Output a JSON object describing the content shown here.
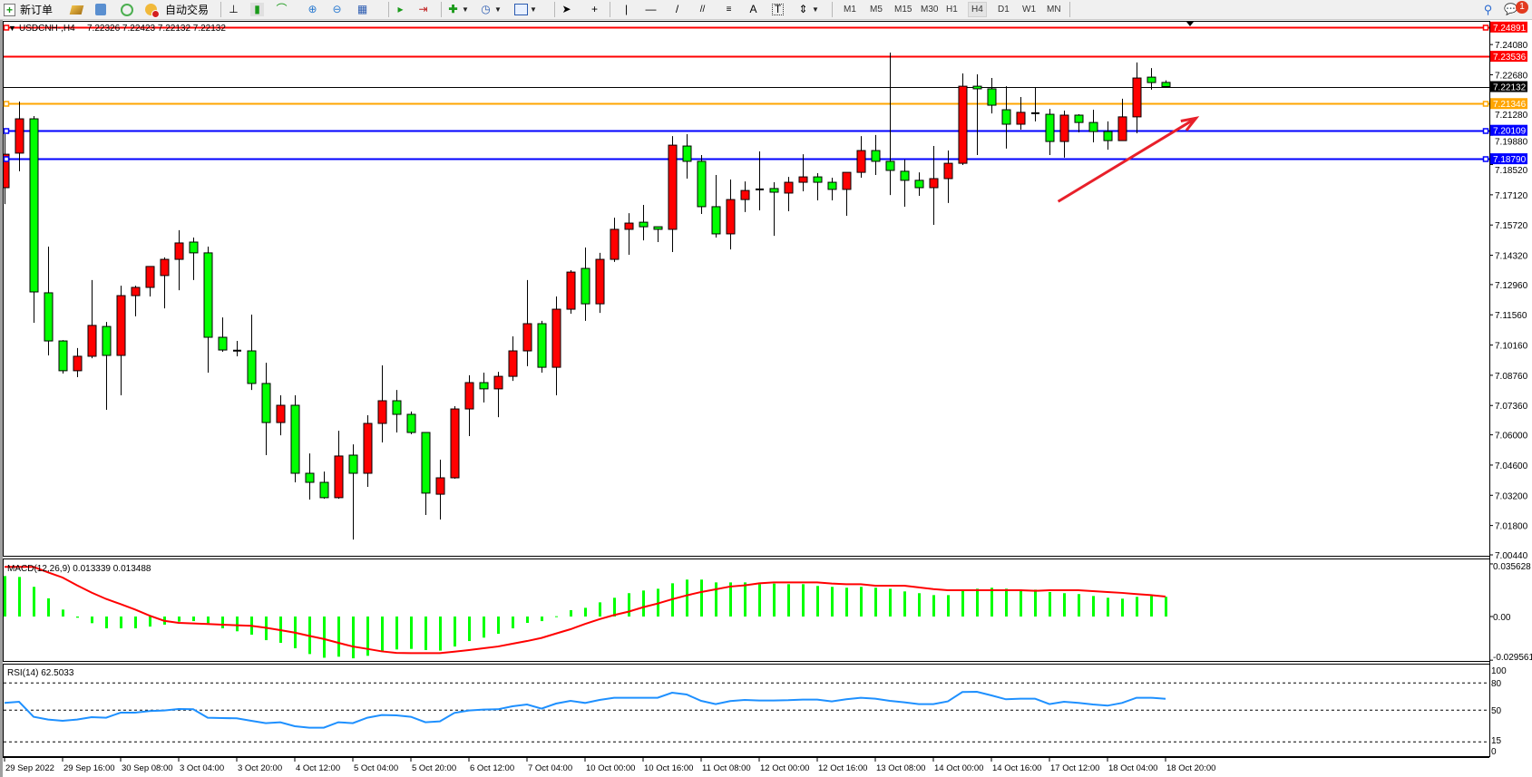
{
  "toolbar": {
    "new_order_label": "新订单",
    "auto_trading_label": "自动交易",
    "icons": [
      "new-order-icon",
      "gold-bars-icon",
      "navigator-icon",
      "signals-icon",
      "auto-trading-icon",
      "bar-chart-icon",
      "candlestick-icon",
      "line-chart-icon",
      "zoom-in-icon",
      "zoom-out-icon",
      "tile-windows-icon",
      "autoscroll-icon",
      "chart-shift-icon",
      "add-indicator-icon",
      "periods-clock-icon",
      "templates-icon",
      "cursor-icon",
      "crosshair-icon",
      "vertical-line-icon",
      "horizontal-line-icon",
      "trendline-icon",
      "equidistant-channel-icon",
      "fibonacci-icon",
      "text-icon",
      "text-label-icon",
      "arrows-icon",
      "search-icon",
      "chat-icon"
    ],
    "timeframes": [
      "M1",
      "M5",
      "M15",
      "M30",
      "H1",
      "H4",
      "D1",
      "W1",
      "MN"
    ],
    "active_timeframe": "H4",
    "notification_count": "1"
  },
  "chart_header": {
    "symbol_period": "USDCNH-,H4",
    "ohlc": "7.22326 7.22423 7.22132 7.22132"
  },
  "colors": {
    "bull_candle": "#ff0000",
    "bear_candle": "#00ff00",
    "macd_histogram": "#00ff00",
    "macd_signal": "#ff0000",
    "rsi_line": "#1e90ff",
    "annotation_arrow": "#e8202a"
  },
  "chart_data": {
    "type": "candlestick",
    "symbol": "USDCNH-",
    "timeframe": "H4",
    "ylim": [
      7.0044,
      7.251
    ],
    "price_ticks": [
      "7.24080",
      "7.22680",
      "7.21280",
      "7.19880",
      "7.18520",
      "7.17120",
      "7.15720",
      "7.14320",
      "7.12960",
      "7.11560",
      "7.10160",
      "7.08760",
      "7.07360",
      "7.06000",
      "7.04600",
      "7.03200",
      "7.01800",
      "7.00440"
    ],
    "x_tick_labels": [
      "29 Sep 2022",
      "29 Sep 16:00",
      "30 Sep 08:00",
      "3 Oct 04:00",
      "3 Oct 20:00",
      "4 Oct 12:00",
      "5 Oct 04:00",
      "5 Oct 20:00",
      "6 Oct 12:00",
      "7 Oct 04:00",
      "10 Oct 00:00",
      "10 Oct 16:00",
      "11 Oct 08:00",
      "12 Oct 00:00",
      "12 Oct 16:00",
      "13 Oct 08:00",
      "14 Oct 00:00",
      "14 Oct 16:00",
      "17 Oct 12:00",
      "18 Oct 04:00",
      "18 Oct 20:00"
    ],
    "x_tick_every_bars": 4,
    "ohlc_fields": [
      "open",
      "high",
      "low",
      "close"
    ],
    "candles": [
      [
        7.1745,
        7.1993,
        7.1669,
        7.19
      ],
      [
        7.1905,
        7.2144,
        7.1821,
        7.2064
      ],
      [
        7.2064,
        7.2077,
        7.1119,
        7.1262
      ],
      [
        7.1258,
        7.1472,
        7.0968,
        7.1035
      ],
      [
        7.1035,
        7.1039,
        7.0884,
        7.0897
      ],
      [
        7.0897,
        7.1002,
        7.0867,
        7.0964
      ],
      [
        7.0964,
        7.1317,
        7.0955,
        7.1107
      ],
      [
        7.1102,
        7.1123,
        7.0716,
        7.0968
      ],
      [
        7.0968,
        7.1291,
        7.0783,
        7.1245
      ],
      [
        7.1245,
        7.1291,
        7.1149,
        7.1283
      ],
      [
        7.1283,
        7.138,
        7.1241,
        7.138
      ],
      [
        7.1338,
        7.1422,
        7.1186,
        7.1413
      ],
      [
        7.1413,
        7.1548,
        7.127,
        7.1489
      ],
      [
        7.1493,
        7.1514,
        7.1317,
        7.1443
      ],
      [
        7.1443,
        7.1472,
        7.0888,
        7.1052
      ],
      [
        7.1052,
        7.1144,
        7.0985,
        7.0993
      ],
      [
        7.099,
        7.1035,
        7.0964,
        7.0989
      ],
      [
        7.0989,
        7.1157,
        7.0808,
        7.0838
      ],
      [
        7.0838,
        7.0934,
        7.0506,
        7.0657
      ],
      [
        7.0657,
        7.0783,
        7.0598,
        7.0737
      ],
      [
        7.0737,
        7.0783,
        7.038,
        7.0422
      ],
      [
        7.0422,
        7.0514,
        7.03,
        7.038
      ],
      [
        7.038,
        7.043,
        7.0304,
        7.0309
      ],
      [
        7.0309,
        7.0619,
        7.0304,
        7.0502
      ],
      [
        7.0506,
        7.0556,
        7.0115,
        7.0422
      ],
      [
        7.0422,
        7.0691,
        7.0359,
        7.0653
      ],
      [
        7.0653,
        7.0922,
        7.0565,
        7.0758
      ],
      [
        7.0758,
        7.0808,
        7.0611,
        7.0695
      ],
      [
        7.0695,
        7.0708,
        7.0603,
        7.0611
      ],
      [
        7.0611,
        7.0611,
        7.0229,
        7.033
      ],
      [
        7.0325,
        7.0485,
        7.0208,
        7.0401
      ],
      [
        7.0401,
        7.0733,
        7.0397,
        7.072
      ],
      [
        7.072,
        7.0876,
        7.0594,
        7.0842
      ],
      [
        7.0842,
        7.0888,
        7.075,
        7.0813
      ],
      [
        7.0813,
        7.0892,
        7.0682,
        7.0871
      ],
      [
        7.0871,
        7.1056,
        7.085,
        7.0989
      ],
      [
        7.0989,
        7.1317,
        7.0918,
        7.1115
      ],
      [
        7.1115,
        7.1128,
        7.0888,
        7.0913
      ],
      [
        7.0913,
        7.1241,
        7.0783,
        7.1182
      ],
      [
        7.1182,
        7.1363,
        7.1161,
        7.1354
      ],
      [
        7.1371,
        7.1468,
        7.1128,
        7.1207
      ],
      [
        7.1207,
        7.1443,
        7.1165,
        7.1413
      ],
      [
        7.1413,
        7.1606,
        7.1401,
        7.1552
      ],
      [
        7.1552,
        7.1627,
        7.1434,
        7.1581
      ],
      [
        7.1585,
        7.1665,
        7.1501,
        7.1564
      ],
      [
        7.1564,
        7.1564,
        7.1493,
        7.1552
      ],
      [
        7.1552,
        7.1984,
        7.1447,
        7.1942
      ],
      [
        7.1938,
        7.1993,
        7.1787,
        7.1867
      ],
      [
        7.1867,
        7.1896,
        7.1623,
        7.1657
      ],
      [
        7.1657,
        7.1804,
        7.1514,
        7.1531
      ],
      [
        7.1531,
        7.1783,
        7.1459,
        7.169
      ],
      [
        7.169,
        7.1774,
        7.1632,
        7.1732
      ],
      [
        7.1737,
        7.1913,
        7.164,
        7.1736
      ],
      [
        7.1741,
        7.177,
        7.1522,
        7.1724
      ],
      [
        7.172,
        7.1795,
        7.1636,
        7.177
      ],
      [
        7.177,
        7.19,
        7.1728,
        7.1795
      ],
      [
        7.1795,
        7.1812,
        7.1686,
        7.177
      ],
      [
        7.177,
        7.1791,
        7.1686,
        7.1737
      ],
      [
        7.1737,
        7.1816,
        7.1615,
        7.1816
      ],
      [
        7.1816,
        7.1984,
        7.1791,
        7.1917
      ],
      [
        7.1917,
        7.1989,
        7.1804,
        7.1867
      ],
      [
        7.1867,
        7.2371,
        7.1711,
        7.1825
      ],
      [
        7.1821,
        7.1875,
        7.1657,
        7.1779
      ],
      [
        7.1779,
        7.1816,
        7.1707,
        7.1745
      ],
      [
        7.1745,
        7.1938,
        7.1573,
        7.1787
      ],
      [
        7.1787,
        7.1917,
        7.1674,
        7.1858
      ],
      [
        7.1858,
        7.2274,
        7.185,
        7.2215
      ],
      [
        7.2215,
        7.227,
        7.1896,
        7.2203
      ],
      [
        7.2203,
        7.2253,
        7.2089,
        7.2127
      ],
      [
        7.2106,
        7.2215,
        7.1926,
        7.2039
      ],
      [
        7.2039,
        7.2165,
        7.2014,
        7.2094
      ],
      [
        7.209,
        7.2207,
        7.2052,
        7.2089
      ],
      [
        7.2085,
        7.211,
        7.1896,
        7.1959
      ],
      [
        7.1959,
        7.2102,
        7.1884,
        7.2081
      ],
      [
        7.2081,
        7.2085,
        7.2001,
        7.2047
      ],
      [
        7.2047,
        7.2106,
        7.1955,
        7.2005
      ],
      [
        7.2005,
        7.2052,
        7.1921,
        7.1963
      ],
      [
        7.1963,
        7.2157,
        7.1963,
        7.2073
      ],
      [
        7.2073,
        7.2325,
        7.1997,
        7.2253
      ],
      [
        7.2257,
        7.2299,
        7.2199,
        7.2232
      ],
      [
        7.22326,
        7.22423,
        7.22132,
        7.22132
      ]
    ],
    "horizontal_lines": [
      {
        "price": 7.24891,
        "label": "7.24891",
        "color": "#ff0000",
        "anchors": true
      },
      {
        "price": 7.23536,
        "label": "7.23536",
        "color": "#ff0000",
        "anchors": false
      },
      {
        "price": 7.22132,
        "label": "7.22132",
        "color": "#000000",
        "anchors": false,
        "current_price": true
      },
      {
        "price": 7.21346,
        "label": "7.21346",
        "color": "#ffa500",
        "anchors": true
      },
      {
        "price": 7.20109,
        "label": "7.20109",
        "color": "#0000ff",
        "anchors": true
      },
      {
        "price": 7.1879,
        "label": "7.18790",
        "color": "#0000ff",
        "anchors": true
      }
    ],
    "annotation": {
      "type": "arrow",
      "direction": "up-right",
      "from_bar": 72.6,
      "from_price": 7.1681,
      "to_bar": 82.1,
      "to_price": 7.2067
    },
    "macd": {
      "label": "MACD(12,26,9) 0.013339 0.013488",
      "ylim": [
        -0.029561,
        0.035628
      ],
      "ticks": [
        "0.035628",
        "0.00",
        "-0.029561"
      ],
      "histogram": [
        0.0274,
        0.0268,
        0.0201,
        0.0123,
        0.0047,
        -0.0008,
        -0.0045,
        -0.008,
        -0.008,
        -0.008,
        -0.0068,
        -0.0055,
        -0.0035,
        -0.0031,
        -0.0045,
        -0.008,
        -0.01,
        -0.0123,
        -0.016,
        -0.0178,
        -0.0215,
        -0.0254,
        -0.0279,
        -0.0272,
        -0.0283,
        -0.0266,
        -0.0238,
        -0.0223,
        -0.0219,
        -0.0227,
        -0.0231,
        -0.0203,
        -0.0166,
        -0.0143,
        -0.0117,
        -0.008,
        -0.0043,
        -0.0031,
        0.0002,
        0.0043,
        0.0059,
        0.0096,
        0.0127,
        0.0158,
        0.0176,
        0.0188,
        0.0225,
        0.025,
        0.025,
        0.0231,
        0.0231,
        0.0231,
        0.0219,
        0.0223,
        0.0219,
        0.0219,
        0.0207,
        0.0201,
        0.0195,
        0.0201,
        0.0195,
        0.0188,
        0.017,
        0.0158,
        0.0145,
        0.0145,
        0.0174,
        0.0188,
        0.0195,
        0.0188,
        0.0182,
        0.0182,
        0.0166,
        0.0158,
        0.0152,
        0.0139,
        0.0127,
        0.0121,
        0.0133,
        0.0139,
        0.013339
      ],
      "signal": [
        0.0336,
        0.0336,
        0.0336,
        0.0299,
        0.0264,
        0.0211,
        0.0162,
        0.0119,
        0.0084,
        0.0047,
        0.0006,
        -0.0029,
        -0.0043,
        -0.0047,
        -0.0051,
        -0.0055,
        -0.0059,
        -0.0063,
        -0.0076,
        -0.0092,
        -0.0109,
        -0.0131,
        -0.0152,
        -0.0178,
        -0.0203,
        -0.0219,
        -0.0236,
        -0.0246,
        -0.0248,
        -0.0248,
        -0.0248,
        -0.0238,
        -0.0227,
        -0.0215,
        -0.0203,
        -0.0184,
        -0.0166,
        -0.0145,
        -0.0115,
        -0.0086,
        -0.005,
        -0.0018,
        0.001,
        0.0033,
        0.0063,
        0.0088,
        0.0117,
        0.0143,
        0.0166,
        0.0184,
        0.0203,
        0.0211,
        0.0225,
        0.0231,
        0.0231,
        0.0231,
        0.0231,
        0.0223,
        0.0219,
        0.0219,
        0.0209,
        0.0209,
        0.0209,
        0.0197,
        0.0186,
        0.0178,
        0.0178,
        0.0178,
        0.0178,
        0.0178,
        0.0178,
        0.0174,
        0.0178,
        0.0178,
        0.0178,
        0.0172,
        0.0166,
        0.016,
        0.0152,
        0.0145,
        0.013488
      ]
    },
    "rsi": {
      "label": "RSI(14) 62.5033",
      "ylim": [
        0,
        100
      ],
      "ticks": [
        "100",
        "80",
        "50",
        "15",
        "0"
      ],
      "levels": [
        80,
        50,
        15
      ],
      "values": [
        58,
        59.3,
        42.7,
        39.7,
        38.3,
        39.7,
        42.3,
        41.7,
        47.3,
        47.3,
        49,
        49.7,
        51.3,
        51,
        41.7,
        41.3,
        41,
        38.3,
        35.7,
        36.7,
        32.3,
        30.7,
        30.7,
        36.7,
        35.7,
        41.7,
        44.7,
        44.3,
        42.7,
        36.7,
        37.7,
        47,
        49.7,
        50.7,
        51,
        54.3,
        56.3,
        51.7,
        57.3,
        60.3,
        58,
        61.3,
        63.7,
        63.7,
        63.7,
        63.7,
        69.3,
        67.3,
        60.3,
        56.7,
        60,
        61.3,
        60.7,
        60.7,
        61,
        61.7,
        61.7,
        59.7,
        62,
        63.7,
        62.7,
        60.3,
        58.7,
        56.7,
        56.7,
        59.7,
        70,
        70.3,
        66.3,
        62,
        62.7,
        62.7,
        56.7,
        59.3,
        58,
        56.3,
        55,
        58,
        63.7,
        63.7,
        62.5033
      ]
    }
  }
}
